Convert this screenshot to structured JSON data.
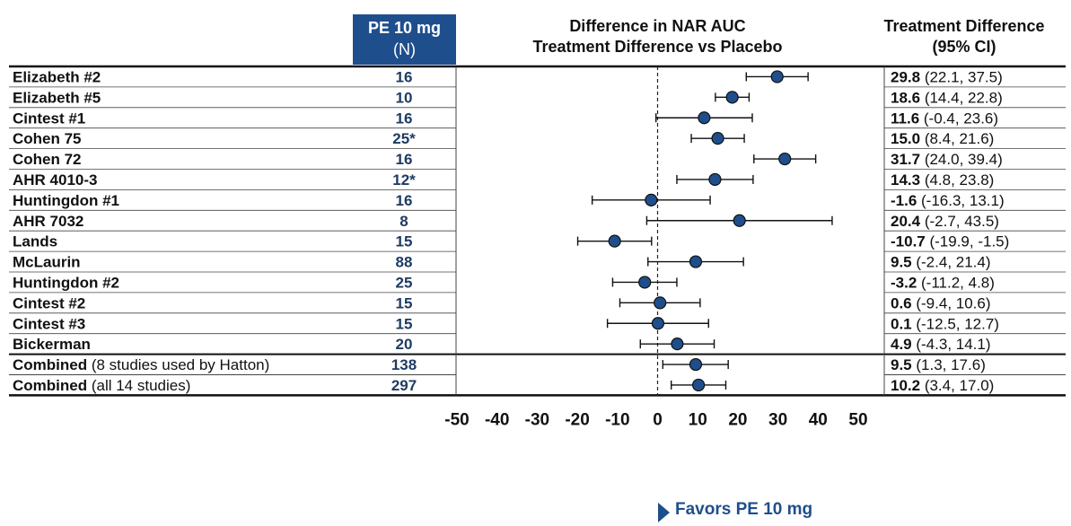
{
  "header": {
    "group_label": "PE 10 mg",
    "group_n_label": "(N)",
    "plot_title_line1": "Difference in NAR AUC",
    "plot_title_line2": "Treatment Difference vs Placebo",
    "ci_title_line1": "Treatment Difference",
    "ci_title_line2": "(95% CI)"
  },
  "footer": {
    "favors_label": "Favors PE 10 mg"
  },
  "colors": {
    "accent": "#1f4e8c",
    "marker": "#1f4e8c",
    "n_text": "#1f3b63"
  },
  "chart_data": {
    "type": "forest",
    "xlim": [
      -50,
      50
    ],
    "x_ticks": [
      -50,
      -40,
      -30,
      -20,
      -10,
      0,
      10,
      20,
      30,
      40,
      50
    ],
    "reference_line": 0,
    "rows": [
      {
        "study": "Elizabeth #2",
        "study_note": "",
        "n": "16",
        "est": 29.8,
        "lo": 22.1,
        "hi": 37.5,
        "est_text": "29.8",
        "ci_text": " (22.1, 37.5)"
      },
      {
        "study": "Elizabeth #5",
        "study_note": "",
        "n": "10",
        "est": 18.6,
        "lo": 14.4,
        "hi": 22.8,
        "est_text": "18.6",
        "ci_text": " (14.4, 22.8)"
      },
      {
        "study": "Cintest #1",
        "study_note": "",
        "n": "16",
        "est": 11.6,
        "lo": -0.4,
        "hi": 23.6,
        "est_text": "11.6",
        "ci_text": " (-0.4, 23.6)"
      },
      {
        "study": "Cohen 75",
        "study_note": "",
        "n": "25*",
        "est": 15.0,
        "lo": 8.4,
        "hi": 21.6,
        "est_text": "15.0",
        "ci_text": " (8.4, 21.6)"
      },
      {
        "study": "Cohen 72",
        "study_note": "",
        "n": "16",
        "est": 31.7,
        "lo": 24.0,
        "hi": 39.4,
        "est_text": "31.7",
        "ci_text": " (24.0, 39.4)"
      },
      {
        "study": "AHR 4010-3",
        "study_note": "",
        "n": "12*",
        "est": 14.3,
        "lo": 4.8,
        "hi": 23.8,
        "est_text": "14.3",
        "ci_text": " (4.8, 23.8)"
      },
      {
        "study": "Huntingdon #1",
        "study_note": "",
        "n": "16",
        "est": -1.6,
        "lo": -16.3,
        "hi": 13.1,
        "est_text": "-1.6",
        "ci_text": " (-16.3, 13.1)"
      },
      {
        "study": "AHR 7032",
        "study_note": "",
        "n": "8",
        "est": 20.4,
        "lo": -2.7,
        "hi": 43.5,
        "est_text": "20.4",
        "ci_text": " (-2.7, 43.5)"
      },
      {
        "study": "Lands",
        "study_note": "",
        "n": "15",
        "est": -10.7,
        "lo": -19.9,
        "hi": -1.5,
        "est_text": "-10.7",
        "ci_text": " (-19.9, -1.5)"
      },
      {
        "study": "McLaurin",
        "study_note": "",
        "n": "88",
        "est": 9.5,
        "lo": -2.4,
        "hi": 21.4,
        "est_text": "9.5",
        "ci_text": " (-2.4, 21.4)"
      },
      {
        "study": "Huntingdon #2",
        "study_note": "",
        "n": "25",
        "est": -3.2,
        "lo": -11.2,
        "hi": 4.8,
        "est_text": "-3.2",
        "ci_text": " (-11.2, 4.8)"
      },
      {
        "study": "Cintest #2",
        "study_note": "",
        "n": "15",
        "est": 0.6,
        "lo": -9.4,
        "hi": 10.6,
        "est_text": "0.6",
        "ci_text": " (-9.4, 10.6)"
      },
      {
        "study": "Cintest #3",
        "study_note": "",
        "n": "15",
        "est": 0.1,
        "lo": -12.5,
        "hi": 12.7,
        "est_text": "0.1",
        "ci_text": " (-12.5, 12.7)"
      },
      {
        "study": "Bickerman",
        "study_note": "",
        "n": "20",
        "est": 4.9,
        "lo": -4.3,
        "hi": 14.1,
        "est_text": "4.9",
        "ci_text": " (-4.3, 14.1)"
      },
      {
        "study": "Combined",
        "study_note": " (8 studies used by Hatton)",
        "n": "138",
        "est": 9.5,
        "lo": 1.3,
        "hi": 17.6,
        "est_text": "9.5",
        "ci_text": " (1.3, 17.6)"
      },
      {
        "study": "Combined",
        "study_note": " (all 14 studies)",
        "n": "297",
        "est": 10.2,
        "lo": 3.4,
        "hi": 17.0,
        "est_text": "10.2",
        "ci_text": " (3.4, 17.0)"
      }
    ]
  }
}
